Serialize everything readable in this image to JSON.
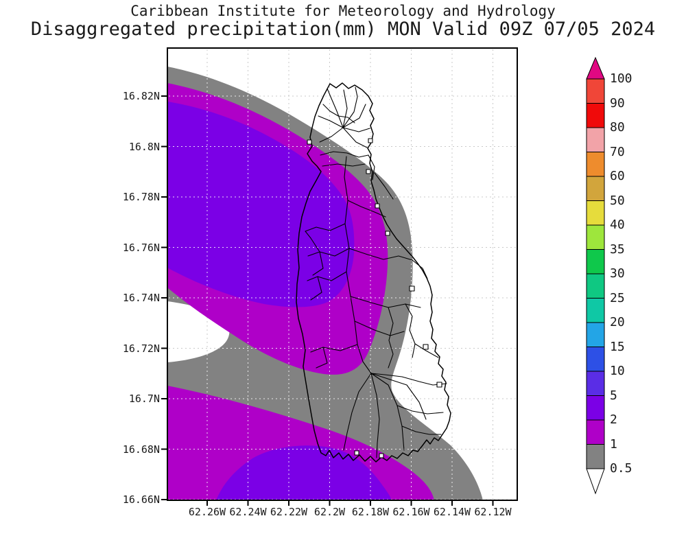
{
  "title": {
    "line1": "Caribbean Institute for Meteorology and Hydrology",
    "line2": "Disaggregated precipitation(mm) MON Valid 09Z 07/05 2024"
  },
  "axes": {
    "lat_labels": [
      "16.82N",
      "16.8N",
      "16.78N",
      "16.76N",
      "16.74N",
      "16.72N",
      "16.7N",
      "16.68N",
      "16.66N"
    ],
    "lon_labels": [
      "62.26W",
      "62.24W",
      "62.22W",
      "62.2W",
      "62.18W",
      "62.16W",
      "62.14W",
      "62.12W"
    ]
  },
  "colorbar": {
    "tick_labels": [
      "100",
      "90",
      "80",
      "70",
      "60",
      "50",
      "40",
      "35",
      "30",
      "25",
      "20",
      "15",
      "10",
      "5",
      "2",
      "1",
      "0.5"
    ],
    "segment_colors_top_to_bottom": [
      "#F04638",
      "#F00A0A",
      "#F2A3A8",
      "#EE8C2D",
      "#D2A53C",
      "#E6DC3C",
      "#9EE63C",
      "#0FC84B",
      "#0FC882",
      "#0FC8A5",
      "#23A5E6",
      "#2D50E6",
      "#5A2DE6",
      "#7B00E6",
      "#AF00C8",
      "#828282"
    ],
    "above_max_color": "#E10882",
    "below_min_color": "#FFFFFF"
  },
  "palette": {
    "band_0p5_to_1": "#828282",
    "band_1_to_2": "#AF00C8",
    "band_2_to_5": "#7B00E6",
    "background_dry": "#FFFFFF",
    "grid_over_white": "#C9C9C9",
    "grid_over_fill": "#FFFFFF",
    "frame": "#000000",
    "coastline": "#000000"
  },
  "chart_data": {
    "type": "heatmap",
    "subtype": "filled-contour-precipitation-map",
    "units": "mm",
    "valid": "MON Valid 09Z 07/05 2024",
    "contour_levels": [
      0.5,
      1,
      2,
      5,
      10,
      15,
      20,
      25,
      30,
      35,
      40,
      50,
      60,
      70,
      80,
      90,
      100
    ],
    "levels_present_in_map": [
      {
        "range": "< 0.5",
        "color": "#FFFFFF"
      },
      {
        "range": "0.5 - 1",
        "color": "#828282"
      },
      {
        "range": "1 - 2",
        "color": "#AF00C8"
      },
      {
        "range": "2 - 5",
        "color": "#7B00E6"
      }
    ],
    "lat_range": [
      "16.66N",
      "16.84N"
    ],
    "lon_range": [
      "62.28W",
      "62.11W"
    ],
    "grid": "dotted",
    "legend_position": "right-colorbar"
  }
}
